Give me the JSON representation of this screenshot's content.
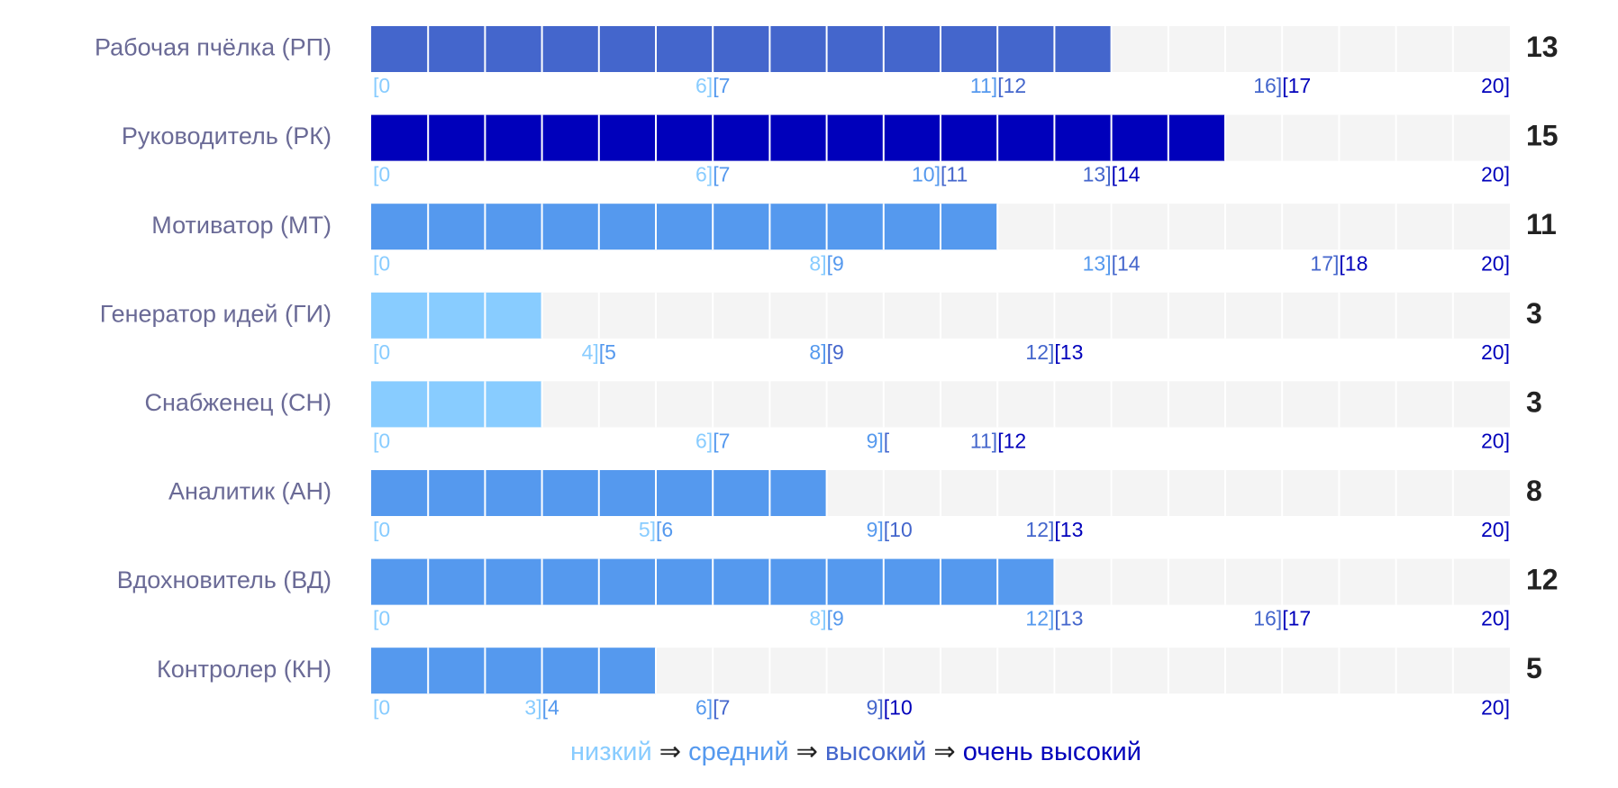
{
  "max": 20,
  "levels": [
    {
      "name": "низкий",
      "color": "#88ccff"
    },
    {
      "name": "средний",
      "color": "#5599ee"
    },
    {
      "name": "высокий",
      "color": "#4466cc"
    },
    {
      "name": "очень высокий",
      "color": "#0000bb"
    }
  ],
  "separator": "⇒",
  "rows": [
    {
      "label": "Рабочая пчёлка (РП)",
      "value": 13,
      "ranges": [
        {
          "start": "[0",
          "end": {
            "value": 6,
            "label": "6]"
          }
        },
        {
          "start": "[7",
          "end": {
            "value": 11,
            "label": "11]"
          }
        },
        {
          "start": "[12",
          "end": {
            "value": 16,
            "label": "16]"
          }
        },
        {
          "start": "[17",
          "end": {
            "value": 20,
            "label": "20]"
          }
        }
      ]
    },
    {
      "label": "Руководитель (РК)",
      "value": 15,
      "ranges": [
        {
          "start": "[0",
          "end": {
            "value": 6,
            "label": "6]"
          }
        },
        {
          "start": "[7",
          "end": {
            "value": 10,
            "label": "10]"
          }
        },
        {
          "start": "[11",
          "end": {
            "value": 13,
            "label": "13]"
          }
        },
        {
          "start": "[14",
          "end": {
            "value": 20,
            "label": "20]"
          }
        }
      ]
    },
    {
      "label": "Мотиватор (МТ)",
      "value": 11,
      "ranges": [
        {
          "start": "[0",
          "end": {
            "value": 8,
            "label": "8]"
          }
        },
        {
          "start": "[9",
          "end": {
            "value": 13,
            "label": "13]"
          }
        },
        {
          "start": "[14",
          "end": {
            "value": 17,
            "label": "17]"
          }
        },
        {
          "start": "[18",
          "end": {
            "value": 20,
            "label": "20]"
          }
        }
      ]
    },
    {
      "label": "Генератор идей (ГИ)",
      "value": 3,
      "ranges": [
        {
          "start": "[0",
          "end": {
            "value": 4,
            "label": "4]"
          }
        },
        {
          "start": "[5",
          "end": {
            "value": 8,
            "label": "8]"
          }
        },
        {
          "start": "[9",
          "end": {
            "value": 12,
            "label": "12]"
          }
        },
        {
          "start": "[13",
          "end": {
            "value": 20,
            "label": "20]"
          }
        }
      ]
    },
    {
      "label": "Снабженец (СН)",
      "value": 3,
      "ranges": [
        {
          "start": "[0",
          "end": {
            "value": 6,
            "label": "6]"
          }
        },
        {
          "start": "[7",
          "end": {
            "value": 9,
            "label": "9]"
          }
        },
        {
          "start": "[",
          "end": {
            "value": 11,
            "label": "11]"
          }
        },
        {
          "start": "[12",
          "end": {
            "value": 20,
            "label": "20]"
          }
        }
      ]
    },
    {
      "label": "Аналитик (АН)",
      "value": 8,
      "ranges": [
        {
          "start": "[0",
          "end": {
            "value": 5,
            "label": "5]"
          }
        },
        {
          "start": "[6",
          "end": {
            "value": 9,
            "label": "9]"
          }
        },
        {
          "start": "[10",
          "end": {
            "value": 12,
            "label": "12]"
          }
        },
        {
          "start": "[13",
          "end": {
            "value": 20,
            "label": "20]"
          }
        }
      ]
    },
    {
      "label": "Вдохновитель (ВД)",
      "value": 12,
      "ranges": [
        {
          "start": "[0",
          "end": {
            "value": 8,
            "label": "8]"
          }
        },
        {
          "start": "[9",
          "end": {
            "value": 12,
            "label": "12]"
          }
        },
        {
          "start": "[13",
          "end": {
            "value": 16,
            "label": "16]"
          }
        },
        {
          "start": "[17",
          "end": {
            "value": 20,
            "label": "20]"
          }
        }
      ]
    },
    {
      "label": "Контролер (КН)",
      "value": 5,
      "ranges": [
        {
          "start": "[0",
          "end": {
            "value": 3,
            "label": "3]"
          }
        },
        {
          "start": "[4",
          "end": {
            "value": 6,
            "label": "6]"
          }
        },
        {
          "start": "[7",
          "end": {
            "value": 9,
            "label": "9]"
          }
        },
        {
          "start": "[10",
          "end": {
            "value": 20,
            "label": "20]"
          }
        }
      ]
    }
  ]
}
